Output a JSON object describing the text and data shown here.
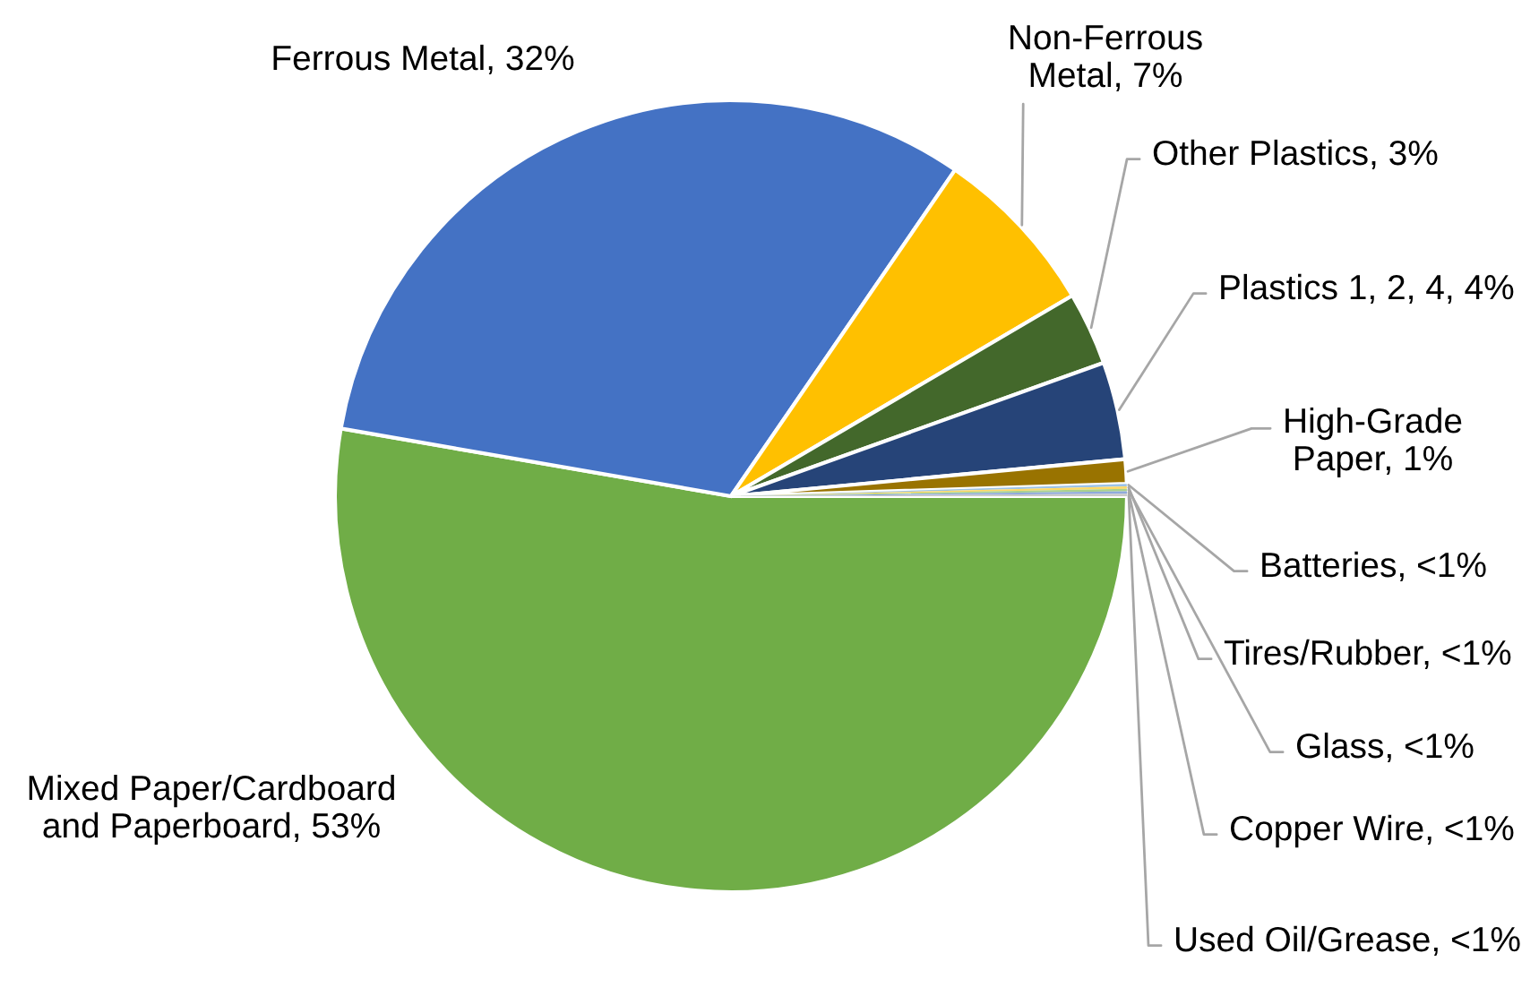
{
  "chart_data": {
    "type": "pie",
    "categories": [
      "Mixed Paper/Cardboard and Paperboard",
      "Ferrous Metal",
      "Non-Ferrous Metal",
      "Other Plastics",
      "Plastics 1, 2, 4",
      "High-Grade Paper",
      "Batteries",
      "Tires/Rubber",
      "Glass",
      "Copper Wire",
      "Used Oil/Grease"
    ],
    "values": [
      53,
      32,
      7,
      3,
      4,
      1,
      0.1,
      0.1,
      0.1,
      0.1,
      0.1
    ],
    "value_labels": [
      "53%",
      "32%",
      "7%",
      "3%",
      "4%",
      "1%",
      "<1%",
      "<1%",
      "<1%",
      "<1%",
      "<1%"
    ],
    "colors": [
      "#70ad47",
      "#4472c4",
      "#ffc000",
      "#43682b",
      "#264478",
      "#997300",
      "#9dc3e6",
      "#ffd966",
      "#a9d18e",
      "#8faadc",
      "#c9c9c9"
    ]
  }
}
